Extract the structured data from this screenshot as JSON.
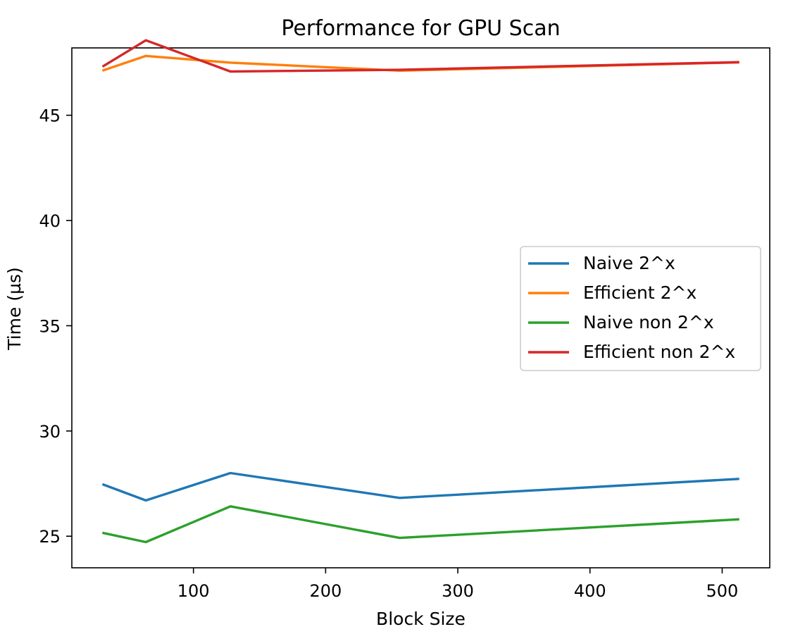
{
  "chart_data": {
    "type": "line",
    "title": "Performance for GPU Scan",
    "xlabel": "Block Size",
    "ylabel": "Time (µs)",
    "x": [
      32,
      64,
      128,
      256,
      512
    ],
    "xlim": [
      8,
      536
    ],
    "ylim": [
      23.5,
      48.2
    ],
    "xticks": [
      100,
      200,
      300,
      400,
      500
    ],
    "yticks": [
      25,
      30,
      35,
      40,
      45
    ],
    "grid": false,
    "legend_position": "center-right",
    "series": [
      {
        "name": "Naive 2^x",
        "color": "#1f77b4",
        "values": [
          27.45,
          26.7,
          28.0,
          26.82,
          27.72
        ]
      },
      {
        "name": "Efficient 2^x",
        "color": "#ff7f0e",
        "values": [
          47.14,
          47.82,
          47.5,
          47.12,
          47.51
        ]
      },
      {
        "name": "Naive non 2^x",
        "color": "#2ca02c",
        "values": [
          25.15,
          24.72,
          26.42,
          24.92,
          25.8
        ]
      },
      {
        "name": "Efficient non 2^x",
        "color": "#d62728",
        "values": [
          47.34,
          48.56,
          47.08,
          47.16,
          47.52
        ]
      }
    ]
  }
}
